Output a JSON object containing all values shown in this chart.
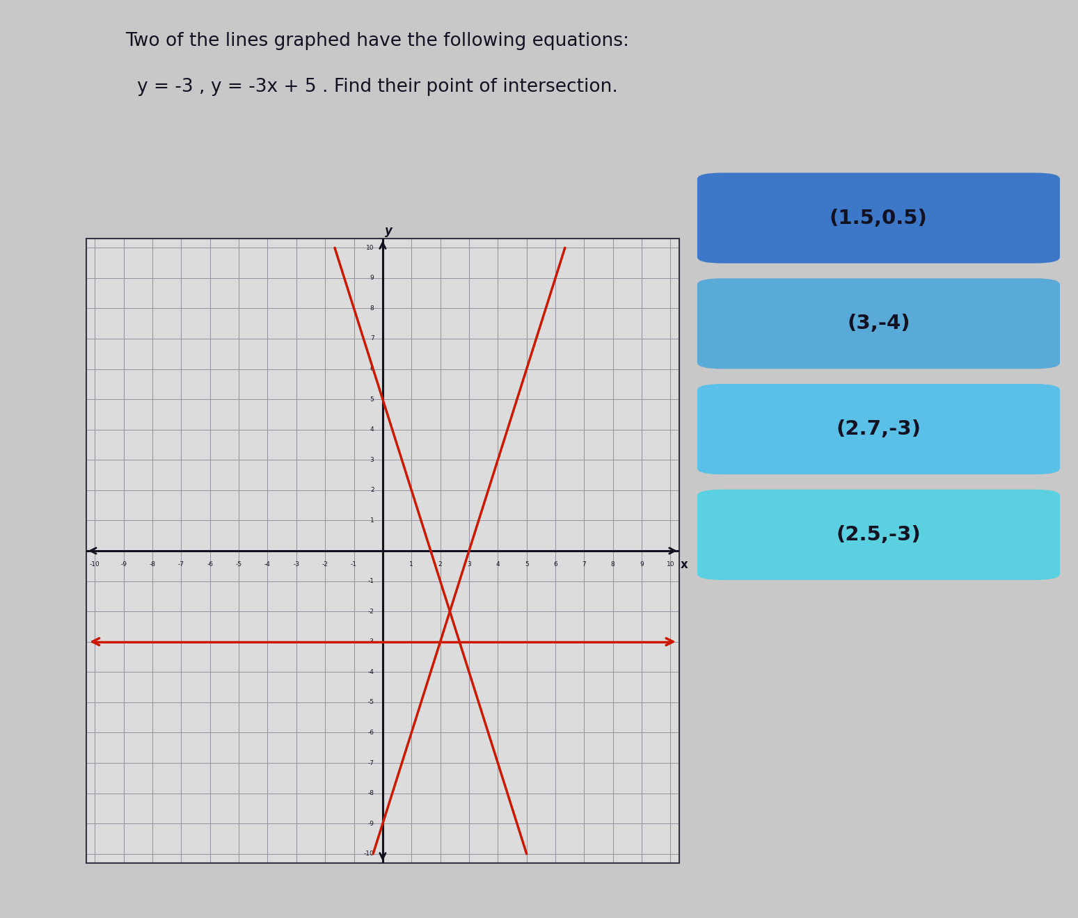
{
  "title_line1": "Two of the lines graphed have the following equations:",
  "title_line2": "y = -3 , y = -3x + 5 . Find their point of intersection.",
  "bg_color": "#c8c8c8",
  "graph_bg": "#dcdcdc",
  "grid_color": "#9090a0",
  "axis_color": "#111122",
  "line_color": "#cc1800",
  "xmin": -10,
  "xmax": 10,
  "ymin": -10,
  "ymax": 10,
  "choices": [
    "(1.5,0.5)",
    "(3,-4)",
    "(2.7,-3)",
    "(2.5,-3)"
  ],
  "choice_colors": [
    "#3d78c8",
    "#5aaad8",
    "#5ac0e8",
    "#5ad0e0"
  ],
  "lines": [
    {
      "slope": 0,
      "intercept": -3
    },
    {
      "slope": -3,
      "intercept": 5
    },
    {
      "slope": 3,
      "intercept": -9
    }
  ]
}
